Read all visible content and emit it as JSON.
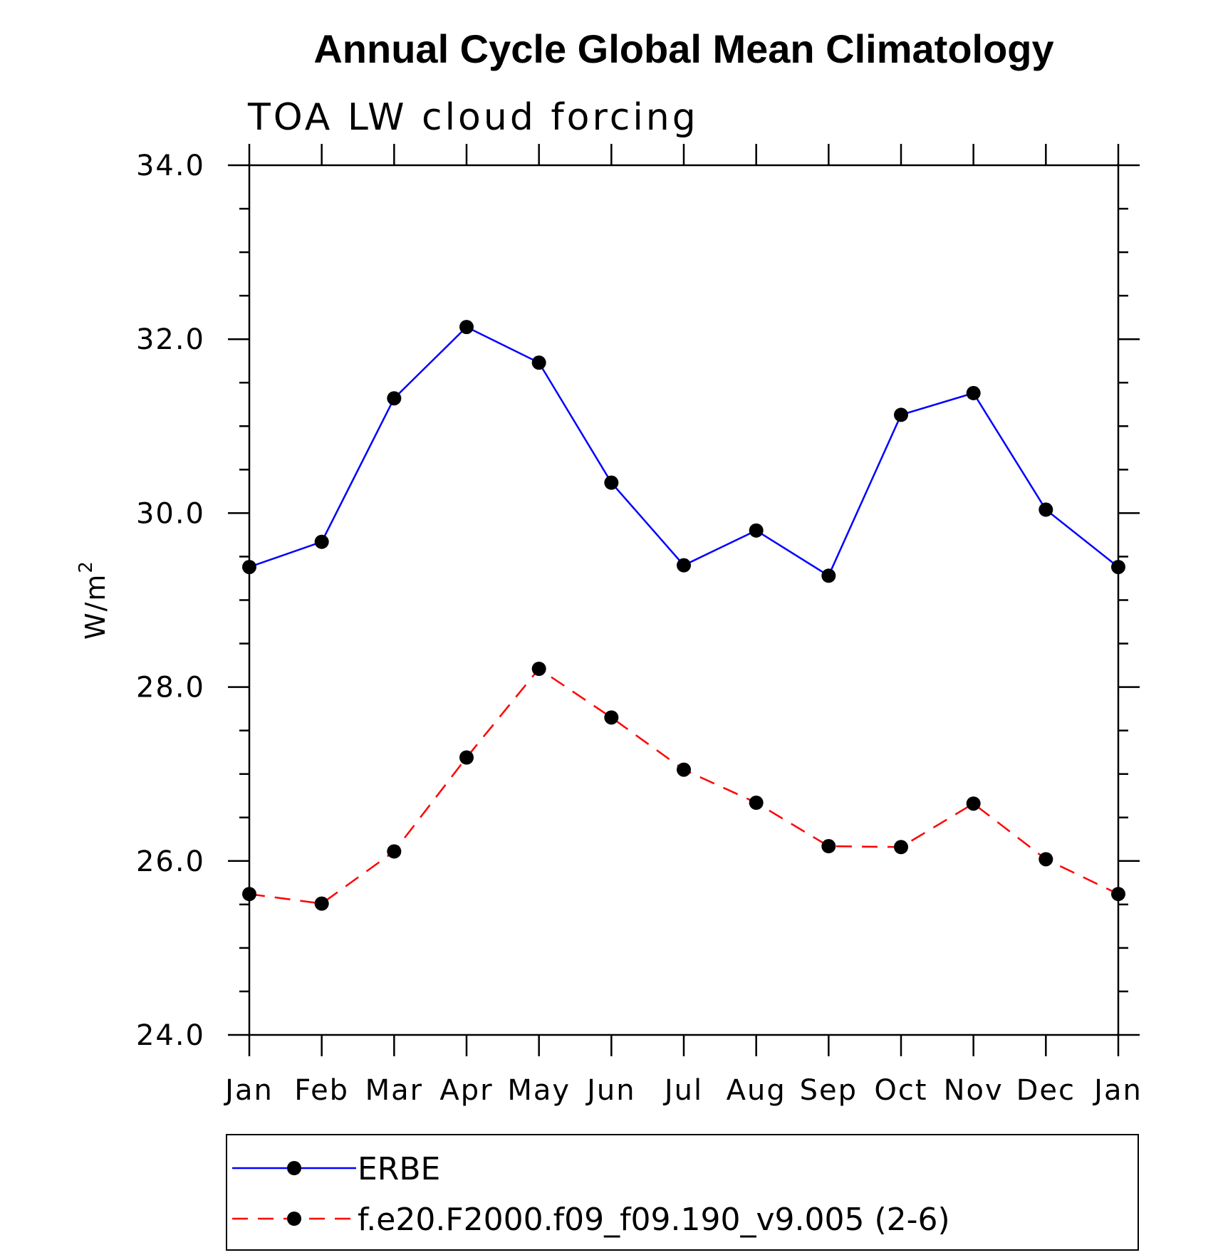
{
  "chart_data": {
    "type": "line",
    "title": "Annual Cycle Global Mean Climatology",
    "subtitle": "TOA LW cloud forcing",
    "ylabel": "W/m",
    "ylabel_sup": "2",
    "xlabel": "",
    "categories": [
      "Jan",
      "Feb",
      "Mar",
      "Apr",
      "May",
      "Jun",
      "Jul",
      "Aug",
      "Sep",
      "Oct",
      "Nov",
      "Dec",
      "Jan"
    ],
    "ylim": [
      24.0,
      34.0
    ],
    "yticks": [
      "24.0",
      "26.0",
      "28.0",
      "30.0",
      "32.0",
      "34.0"
    ],
    "grid": false,
    "legend_position": "bottom",
    "series": [
      {
        "name": "ERBE",
        "color": "#0000ff",
        "dash": "solid",
        "values": [
          29.38,
          29.67,
          31.32,
          32.14,
          31.73,
          30.35,
          29.4,
          29.8,
          29.28,
          31.13,
          31.38,
          30.04,
          29.38
        ]
      },
      {
        "name": "f.e20.F2000.f09_f09.190_v9.005 (2-6)",
        "color": "#ff0000",
        "dash": "dashed",
        "values": [
          25.62,
          25.51,
          26.11,
          27.19,
          28.21,
          27.65,
          27.05,
          26.67,
          26.17,
          26.16,
          26.66,
          26.02,
          25.62
        ]
      }
    ]
  }
}
